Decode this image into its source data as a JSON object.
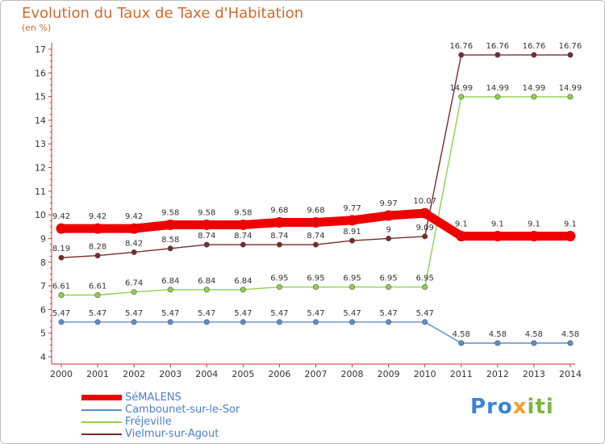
{
  "header": {
    "title": "Evolution du Taux de Taxe d'Habitation",
    "subtitle": "(en %)"
  },
  "logo": {
    "text": "Proxiti",
    "part1": "Pro",
    "part2": "x",
    "part3": "iti",
    "colors": [
      "#3a84d8",
      "#f0a028",
      "#7ab83a"
    ]
  },
  "chart_data": {
    "type": "line",
    "title": "Evolution du Taux de Taxe d'Habitation",
    "ylabel": "(en %)",
    "xlabel": "",
    "x": [
      "2000",
      "2001",
      "2002",
      "2003",
      "2004",
      "2005",
      "2006",
      "2007",
      "2008",
      "2009",
      "2010",
      "2011",
      "2012",
      "2013",
      "2014"
    ],
    "ylim": [
      4,
      17
    ],
    "yticks": [
      4,
      5,
      6,
      7,
      8,
      9,
      10,
      11,
      12,
      13,
      14,
      15,
      16,
      17
    ],
    "grid": false,
    "legend": "bottom-left",
    "series": [
      {
        "name": "SéMALENS",
        "color": "#ee0000",
        "values": [
          9.42,
          9.42,
          9.42,
          9.58,
          9.58,
          9.58,
          9.68,
          9.68,
          9.77,
          9.97,
          10.07,
          9.1,
          9.1,
          9.1,
          9.1
        ],
        "labels": [
          "9.42",
          "9.42",
          "9.42",
          "9.58",
          "9.58",
          "9.58",
          "9.68",
          "9.68",
          "9.77",
          "9.97",
          "10.07",
          "9.1",
          "9.1",
          "9.1",
          "9.1"
        ]
      },
      {
        "name": "Cambounet-sur-le-Sor",
        "color": "#5b8fc9",
        "values": [
          5.47,
          5.47,
          5.47,
          5.47,
          5.47,
          5.47,
          5.47,
          5.47,
          5.47,
          5.47,
          5.47,
          4.58,
          4.58,
          4.58,
          4.58
        ],
        "labels": [
          "5.47",
          "5.47",
          "5.47",
          "5.47",
          "5.47",
          "5.47",
          "5.47",
          "5.47",
          "5.47",
          "5.47",
          "5.47",
          "4.58",
          "4.58",
          "4.58",
          "4.58"
        ]
      },
      {
        "name": "Fréjeville",
        "color": "#8fd14f",
        "values": [
          6.61,
          6.61,
          6.74,
          6.84,
          6.84,
          6.84,
          6.95,
          6.95,
          6.95,
          6.95,
          6.95,
          14.99,
          14.99,
          14.99,
          14.99
        ],
        "labels": [
          "6.61",
          "6.61",
          "6.74",
          "6.84",
          "6.84",
          "6.84",
          "6.95",
          "6.95",
          "6.95",
          "6.95",
          "6.95",
          "14.99",
          "14.99",
          "14.99",
          "14.99"
        ]
      },
      {
        "name": "Vielmur-sur-Agout",
        "color": "#7a2a2a",
        "values": [
          8.19,
          8.28,
          8.42,
          8.58,
          8.74,
          8.74,
          8.74,
          8.74,
          8.91,
          9,
          9.09,
          16.76,
          16.76,
          16.76,
          16.76
        ],
        "labels": [
          "8.19",
          "8.28",
          "8.42",
          "8.58",
          "8.74",
          "8.74",
          "8.74",
          "8.74",
          "8.91",
          "9",
          "9.09",
          "16.76",
          "16.76",
          "16.76",
          "16.76"
        ]
      }
    ]
  }
}
